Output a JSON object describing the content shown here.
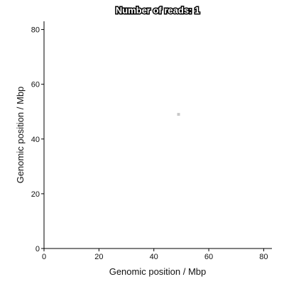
{
  "chart_data": {
    "type": "scatter",
    "title": "Number of reads: 1",
    "xlabel": "Genomic position / Mbp",
    "ylabel": "Genomic position / Mbp",
    "xlim": [
      0,
      83
    ],
    "ylim": [
      0,
      83
    ],
    "xticks": [
      0,
      20,
      40,
      60,
      80
    ],
    "yticks": [
      0,
      20,
      40,
      60,
      80
    ],
    "grid": false,
    "point_color": "#c8c8c8",
    "points": [
      {
        "x": 49,
        "y": 49
      }
    ]
  }
}
